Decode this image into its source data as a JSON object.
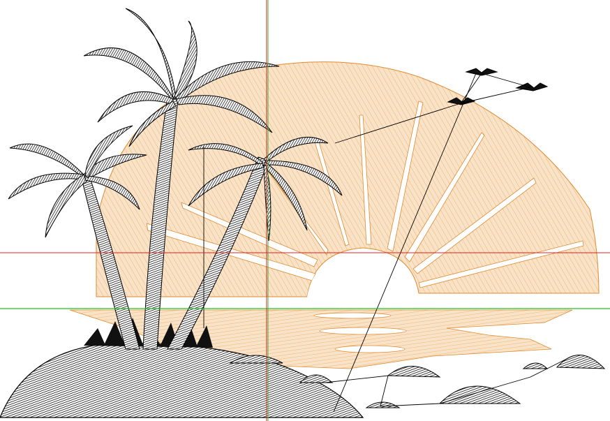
{
  "colors": {
    "background": "#ffffff",
    "sun_fill": "#f7d9b4",
    "sun_stitch": "#f0a95a",
    "palm_fill": "#1a1a1a",
    "guide_horizontal_red": "#e02020",
    "guide_vertical_red": "#e02020",
    "guide_horizontal_green": "#20c020",
    "guide_vertical_green": "#40b040",
    "jump_stitch": "#000000"
  },
  "icons": {
    "birds": "bird-icon",
    "palms": "palm-tree-icon",
    "sun": "sun-icon"
  }
}
